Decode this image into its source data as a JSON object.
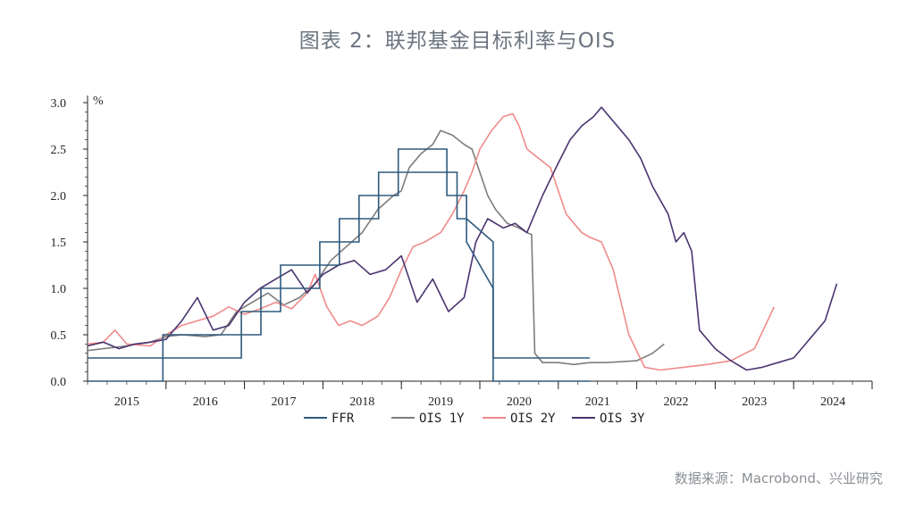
{
  "title": "图表 2：联邦基金目标利率与OIS",
  "source": "数据来源：Macrobond、兴业研究",
  "chart_data": {
    "type": "line",
    "unit_label": "%",
    "ylim": [
      0,
      3.0
    ],
    "xlim": [
      2015.0,
      2025.0
    ],
    "yticks": [
      "0.0",
      "0.5",
      "1.0",
      "1.5",
      "2.0",
      "2.5",
      "3.0"
    ],
    "xticks": [
      "2015",
      "2016",
      "2017",
      "2018",
      "2019",
      "2020",
      "2021",
      "2022",
      "2023",
      "2024"
    ],
    "grid": false,
    "legend_position": "bottom",
    "series": [
      {
        "name": "FFR",
        "color": "#2e5a7e",
        "step": true,
        "bands": [
          {
            "x": [
              2015.0,
              2015.96,
              2015.96,
              2016.96,
              2016.96,
              2017.21,
              2017.21,
              2017.46,
              2017.46,
              2017.96,
              2017.96,
              2018.21,
              2018.21,
              2018.46,
              2018.46,
              2018.71,
              2018.71,
              2018.96,
              2018.96,
              2019.58,
              2019.58,
              2019.71,
              2019.71,
              2019.83,
              2019.83,
              2020.17,
              2020.17,
              2021.4
            ],
            "y": [
              0.0,
              0.0,
              0.25,
              0.25,
              0.5,
              0.5,
              0.75,
              0.75,
              1.0,
              1.0,
              1.25,
              1.25,
              1.5,
              1.5,
              1.75,
              1.75,
              2.0,
              2.0,
              2.25,
              2.25,
              2.0,
              2.0,
              1.75,
              1.75,
              1.5,
              1.0,
              0.0,
              0.0
            ]
          },
          {
            "x": [
              2015.0,
              2015.96,
              2015.96,
              2016.96,
              2016.96,
              2017.21,
              2017.21,
              2017.46,
              2017.46,
              2017.96,
              2017.96,
              2018.21,
              2018.21,
              2018.46,
              2018.46,
              2018.71,
              2018.71,
              2018.96,
              2018.96,
              2019.58,
              2019.58,
              2019.71,
              2019.71,
              2019.83,
              2019.83,
              2020.17,
              2020.17,
              2021.4
            ],
            "y": [
              0.25,
              0.25,
              0.5,
              0.5,
              0.75,
              0.75,
              1.0,
              1.0,
              1.25,
              1.25,
              1.5,
              1.5,
              1.75,
              1.75,
              2.0,
              2.0,
              2.25,
              2.25,
              2.5,
              2.5,
              2.25,
              2.25,
              2.0,
              2.0,
              1.75,
              1.5,
              0.25,
              0.25
            ]
          }
        ]
      },
      {
        "name": "OIS 1Y",
        "color": "#7d7d7d",
        "x": [
          2015.0,
          2015.2,
          2015.5,
          2015.8,
          2016.0,
          2016.2,
          2016.5,
          2016.7,
          2016.9,
          2017.1,
          2017.3,
          2017.5,
          2017.7,
          2017.9,
          2018.1,
          2018.3,
          2018.5,
          2018.7,
          2018.9,
          2019.0,
          2019.1,
          2019.25,
          2019.4,
          2019.5,
          2019.65,
          2019.8,
          2019.9,
          2020.0,
          2020.1,
          2020.2,
          2020.35,
          2020.5,
          2020.6,
          2020.66,
          2020.7,
          2020.8,
          2021.0,
          2021.2,
          2021.4,
          2021.6,
          2021.8,
          2022.0,
          2022.2,
          2022.35
        ],
        "y": [
          0.33,
          0.35,
          0.38,
          0.42,
          0.48,
          0.5,
          0.48,
          0.5,
          0.75,
          0.85,
          0.95,
          0.82,
          0.9,
          1.05,
          1.3,
          1.45,
          1.6,
          1.85,
          2.0,
          2.05,
          2.3,
          2.45,
          2.55,
          2.7,
          2.65,
          2.55,
          2.5,
          2.25,
          2.0,
          1.85,
          1.7,
          1.65,
          1.6,
          1.58,
          0.3,
          0.2,
          0.2,
          0.18,
          0.2,
          0.2,
          0.21,
          0.22,
          0.3,
          0.4
        ]
      },
      {
        "name": "OIS 2Y",
        "color": "#f08a8a",
        "x": [
          2015.0,
          2015.2,
          2015.35,
          2015.5,
          2015.8,
          2016.0,
          2016.2,
          2016.4,
          2016.6,
          2016.8,
          2017.0,
          2017.2,
          2017.4,
          2017.6,
          2017.8,
          2017.9,
          2018.05,
          2018.2,
          2018.35,
          2018.5,
          2018.7,
          2018.85,
          2019.0,
          2019.15,
          2019.3,
          2019.5,
          2019.65,
          2019.8,
          2019.9,
          2020.0,
          2020.15,
          2020.3,
          2020.42,
          2020.5,
          2020.6,
          2020.75,
          2020.9,
          2021.1,
          2021.3,
          2021.4,
          2021.55,
          2021.6,
          2021.7,
          2021.9,
          2022.1,
          2022.3,
          2022.6,
          2022.9,
          2023.2,
          2023.5,
          2023.75
        ],
        "y": [
          0.4,
          0.42,
          0.55,
          0.4,
          0.38,
          0.5,
          0.6,
          0.65,
          0.7,
          0.8,
          0.72,
          0.78,
          0.85,
          0.78,
          0.95,
          1.15,
          0.8,
          0.6,
          0.65,
          0.6,
          0.7,
          0.9,
          1.2,
          1.45,
          1.5,
          1.6,
          1.8,
          2.05,
          2.25,
          2.5,
          2.7,
          2.85,
          2.88,
          2.75,
          2.5,
          2.4,
          2.3,
          1.8,
          1.6,
          1.55,
          1.5,
          1.4,
          1.2,
          0.5,
          0.15,
          0.12,
          0.15,
          0.18,
          0.22,
          0.35,
          0.8
        ]
      },
      {
        "name": "OIS 3Y",
        "color": "#4a3470",
        "x": [
          2015.0,
          2015.2,
          2015.4,
          2015.6,
          2015.8,
          2016.0,
          2016.2,
          2016.4,
          2016.6,
          2016.8,
          2017.0,
          2017.2,
          2017.4,
          2017.6,
          2017.8,
          2018.0,
          2018.2,
          2018.4,
          2018.6,
          2018.8,
          2019.0,
          2019.2,
          2019.4,
          2019.6,
          2019.8,
          2019.95,
          2020.1,
          2020.3,
          2020.45,
          2020.6,
          2020.8,
          2021.0,
          2021.15,
          2021.3,
          2021.45,
          2021.55,
          2021.7,
          2021.9,
          2022.05,
          2022.2,
          2022.4,
          2022.5,
          2022.6,
          2022.7,
          2022.8,
          2023.0,
          2023.2,
          2023.4,
          2023.6,
          2023.8,
          2024.0,
          2024.2,
          2024.4,
          2024.55
        ],
        "y": [
          0.38,
          0.42,
          0.35,
          0.4,
          0.42,
          0.45,
          0.65,
          0.9,
          0.55,
          0.6,
          0.85,
          1.0,
          1.1,
          1.2,
          0.95,
          1.15,
          1.25,
          1.3,
          1.15,
          1.2,
          1.35,
          0.85,
          1.1,
          0.75,
          0.9,
          1.5,
          1.75,
          1.65,
          1.7,
          1.6,
          2.0,
          2.35,
          2.6,
          2.75,
          2.85,
          2.95,
          2.8,
          2.6,
          2.4,
          2.1,
          1.8,
          1.5,
          1.6,
          1.4,
          0.55,
          0.35,
          0.22,
          0.12,
          0.15,
          0.2,
          0.25,
          0.45,
          0.65,
          1.05
        ]
      }
    ]
  }
}
